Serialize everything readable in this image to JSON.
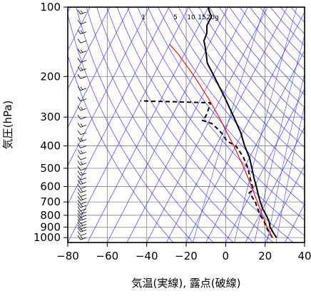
{
  "chart_data": {
    "type": "line",
    "diagram": "skew-T log-P",
    "xlabel": "気温(実線), 露点(破線)",
    "ylabel": "気圧(hPa)",
    "xlim": [
      -80,
      40
    ],
    "ylim_hPa": [
      1050,
      100
    ],
    "y_scale": "log",
    "skew_degC_per_log10_decade": 60,
    "grid": true,
    "x_ticks": [
      -80,
      -60,
      -40,
      -20,
      0,
      20,
      40
    ],
    "x_tick_labels": [
      "−80",
      "−60",
      "−40",
      "−20",
      "0",
      "20",
      "40"
    ],
    "y_ticks": [
      100,
      200,
      300,
      400,
      500,
      600,
      700,
      800,
      900,
      1000
    ],
    "y_tick_labels": [
      "100",
      "200",
      "300",
      "400",
      "500",
      "600",
      "700",
      "800",
      "900",
      "1000"
    ],
    "mixing_ratio_labels": [
      "1",
      "5",
      "10",
      "15",
      "20g"
    ],
    "mixing_ratio_values_g_per_kg": [
      1,
      5,
      10,
      15,
      20
    ],
    "series": [
      {
        "style": "solid",
        "color": "#000000",
        "points": [
          {
            "p": 1000,
            "t": 24.5
          },
          {
            "p": 950,
            "t": 21.5
          },
          {
            "p": 900,
            "t": 18.5
          },
          {
            "p": 850,
            "t": 16.5
          },
          {
            "p": 800,
            "t": 13.5
          },
          {
            "p": 750,
            "t": 10
          },
          {
            "p": 700,
            "t": 7
          },
          {
            "p": 650,
            "t": 4
          },
          {
            "p": 600,
            "t": 1
          },
          {
            "p": 550,
            "t": -2.5
          },
          {
            "p": 500,
            "t": -6
          },
          {
            "p": 450,
            "t": -10
          },
          {
            "p": 400,
            "t": -15.5
          },
          {
            "p": 350,
            "t": -21
          },
          {
            "p": 300,
            "t": -28.5
          },
          {
            "p": 250,
            "t": -37.5
          },
          {
            "p": 200,
            "t": -49
          },
          {
            "p": 175,
            "t": -56
          },
          {
            "p": 150,
            "t": -61
          },
          {
            "p": 140,
            "t": -63.5
          },
          {
            "p": 130,
            "t": -64
          },
          {
            "p": 120,
            "t": -66
          },
          {
            "p": 110,
            "t": -66
          },
          {
            "p": 103,
            "t": -69
          },
          {
            "p": 100,
            "t": -70
          }
        ]
      },
      {
        "style": "dashed",
        "color": "#000000",
        "points": [
          {
            "p": 1000,
            "t": 22.5
          },
          {
            "p": 950,
            "t": 19.5
          },
          {
            "p": 900,
            "t": 16.5
          },
          {
            "p": 850,
            "t": 14
          },
          {
            "p": 800,
            "t": 10.5
          },
          {
            "p": 750,
            "t": 7.5
          },
          {
            "p": 700,
            "t": 4.5
          },
          {
            "p": 660,
            "t": 1
          },
          {
            "p": 640,
            "t": -1
          },
          {
            "p": 620,
            "t": 0
          },
          {
            "p": 600,
            "t": -1
          },
          {
            "p": 550,
            "t": -4.5
          },
          {
            "p": 500,
            "t": -8
          },
          {
            "p": 450,
            "t": -13
          },
          {
            "p": 420,
            "t": -17
          },
          {
            "p": 400,
            "t": -20
          },
          {
            "p": 380,
            "t": -26
          },
          {
            "p": 360,
            "t": -29
          },
          {
            "p": 340,
            "t": -33
          },
          {
            "p": 320,
            "t": -38
          },
          {
            "p": 310,
            "t": -43.5
          },
          {
            "p": 300,
            "t": -43
          },
          {
            "p": 290,
            "t": -43
          },
          {
            "p": 260,
            "t": -44
          },
          {
            "p": 255,
            "t": -80
          }
        ]
      },
      {
        "style": "solid",
        "color": "#ff0000",
        "points": [
          {
            "p": 1000,
            "t": 22.5
          },
          {
            "p": 900,
            "t": 17
          },
          {
            "p": 800,
            "t": 11.5
          },
          {
            "p": 700,
            "t": 5.5
          },
          {
            "p": 600,
            "t": -1.5
          },
          {
            "p": 500,
            "t": -10
          },
          {
            "p": 400,
            "t": -21
          },
          {
            "p": 300,
            "t": -36
          },
          {
            "p": 250,
            "t": -46
          },
          {
            "p": 200,
            "t": -59
          },
          {
            "p": 160,
            "t": -73
          },
          {
            "p": 145,
            "t": -80
          }
        ]
      }
    ],
    "wind_barbs": [
      {
        "p": 1000
      },
      {
        "p": 960
      },
      {
        "p": 925
      },
      {
        "p": 900
      },
      {
        "p": 875
      },
      {
        "p": 850
      },
      {
        "p": 825
      },
      {
        "p": 800
      },
      {
        "p": 775
      },
      {
        "p": 750
      },
      {
        "p": 725
      },
      {
        "p": 700
      },
      {
        "p": 675
      },
      {
        "p": 650
      },
      {
        "p": 625
      },
      {
        "p": 600
      },
      {
        "p": 575
      },
      {
        "p": 550
      },
      {
        "p": 525
      },
      {
        "p": 500
      },
      {
        "p": 475
      },
      {
        "p": 450
      },
      {
        "p": 425
      },
      {
        "p": 400
      },
      {
        "p": 375
      },
      {
        "p": 350
      },
      {
        "p": 325
      },
      {
        "p": 300
      },
      {
        "p": 275
      },
      {
        "p": 250
      },
      {
        "p": 225
      },
      {
        "p": 200
      },
      {
        "p": 185
      },
      {
        "p": 170
      },
      {
        "p": 155
      },
      {
        "p": 140
      },
      {
        "p": 128
      },
      {
        "p": 116
      },
      {
        "p": 105
      }
    ]
  }
}
